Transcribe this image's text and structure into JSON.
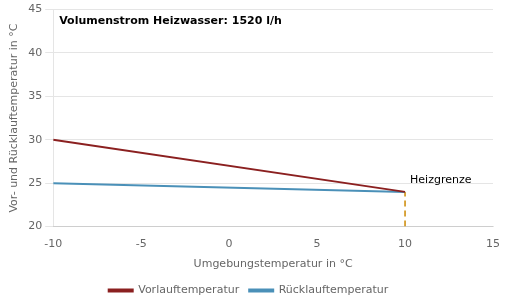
{
  "chart_data": {
    "type": "line",
    "annotations": [
      "Volumenstrom Heizwasser: 1520 l/h"
    ],
    "xlabel": "Umgebungstemperatur in °C",
    "ylabel": "Vor- und Rücklauftemperatur in °C",
    "xlim": [
      -10,
      15
    ],
    "ylim": [
      20,
      45
    ],
    "xticks": [
      -10,
      -5,
      0,
      5,
      10,
      15
    ],
    "yticks": [
      20,
      25,
      30,
      35,
      40,
      45
    ],
    "grid": "y",
    "legend": "bottom",
    "series": [
      {
        "name": "Vorlauftemperatur",
        "color": "#8b2020",
        "x": [
          -10,
          10
        ],
        "values": [
          30,
          24
        ]
      },
      {
        "name": "Rücklauftemperatur",
        "color": "#4a90b8",
        "x": [
          -10,
          10
        ],
        "values": [
          25.0,
          24.0
        ]
      }
    ],
    "reference_lines": [
      {
        "label": "Heizgrenze",
        "color": "#cc8800",
        "line_style": "dashed",
        "x": [
          10,
          10
        ],
        "values": [
          20,
          24
        ]
      }
    ]
  }
}
